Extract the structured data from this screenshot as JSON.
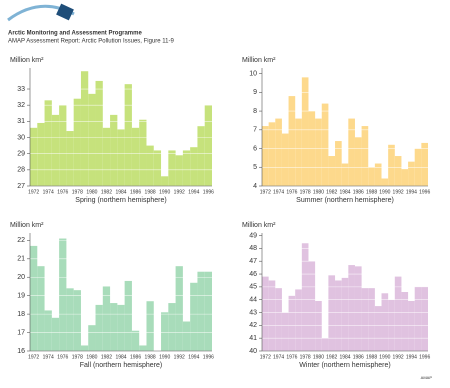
{
  "header": {
    "title": "Arctic Monitoring and Assessment Programme",
    "subtitle": "AMAP Assessment Report: Arctic Pollution Issues, Figure 11-9"
  },
  "footer": "AMAP",
  "chart_data": [
    {
      "type": "bar",
      "ylabel": "Million km²",
      "xlabel": "Spring (northern hemisphere)",
      "color": "#c6e27c",
      "categories": [
        "1972",
        null,
        "1974",
        null,
        "1976",
        null,
        "1978",
        null,
        "1980",
        null,
        "1982",
        null,
        "1984",
        null,
        "1986",
        null,
        "1988",
        null,
        "1990",
        null,
        "1992",
        null,
        "1994",
        null,
        "1996"
      ],
      "values": [
        30.6,
        30.9,
        32.3,
        31.4,
        32.0,
        30.4,
        32.4,
        34.1,
        32.7,
        33.5,
        30.6,
        31.4,
        30.5,
        33.3,
        30.6,
        31.1,
        29.5,
        29.2,
        27.6,
        29.2,
        28.9,
        29.2,
        29.4,
        30.7,
        32.0
      ],
      "ylim": [
        27,
        34.3
      ],
      "yticks": [
        27,
        28,
        29,
        30,
        31,
        32,
        33
      ],
      "grid": true
    },
    {
      "type": "bar",
      "ylabel": "Million km²",
      "xlabel": "Summer (northern hemisphere)",
      "color": "#fdd98c",
      "categories": [
        "1972",
        null,
        "1974",
        null,
        "1976",
        null,
        "1978",
        null,
        "1980",
        null,
        "1982",
        null,
        "1984",
        null,
        "1986",
        null,
        "1988",
        null,
        "1990",
        null,
        "1992",
        null,
        "1994",
        null,
        "1996"
      ],
      "values": [
        7.2,
        7.4,
        7.6,
        6.8,
        8.8,
        7.6,
        9.8,
        8.0,
        7.6,
        8.4,
        5.6,
        6.4,
        5.2,
        7.6,
        6.6,
        7.2,
        5.0,
        5.2,
        4.4,
        6.2,
        5.6,
        4.9,
        5.3,
        6.0,
        6.3
      ],
      "ylim": [
        4,
        10.3
      ],
      "yticks": [
        4,
        5,
        6,
        7,
        8,
        9,
        10
      ],
      "grid": true
    },
    {
      "type": "bar",
      "ylabel": "Million km²",
      "xlabel": "Fall (northern hemisphere)",
      "color": "#a8dcba",
      "categories": [
        "1972",
        null,
        "1974",
        null,
        "1976",
        null,
        "1978",
        null,
        "1980",
        null,
        "1982",
        null,
        "1984",
        null,
        "1986",
        null,
        "1988",
        null,
        "1990",
        null,
        "1992",
        null,
        "1994",
        null,
        "1996"
      ],
      "values": [
        21.7,
        20.6,
        18.2,
        17.8,
        22.1,
        19.4,
        19.3,
        16.3,
        17.4,
        18.5,
        19.5,
        18.6,
        18.5,
        19.8,
        17.1,
        16.3,
        18.7,
        16.0,
        18.1,
        18.6,
        20.6,
        17.6,
        19.7,
        20.3,
        20.3
      ],
      "ylim": [
        16,
        22.4
      ],
      "yticks": [
        16,
        17,
        18,
        19,
        20,
        21,
        22
      ],
      "grid": true
    },
    {
      "type": "bar",
      "ylabel": "Million km²",
      "xlabel": "Winter (northern hemisphere)",
      "color": "#e0c2e0",
      "categories": [
        "1972",
        null,
        "1974",
        null,
        "1976",
        null,
        "1978",
        null,
        "1980",
        null,
        "1982",
        null,
        "1984",
        null,
        "1986",
        null,
        "1988",
        null,
        "1990",
        null,
        "1992",
        null,
        "1994",
        null,
        "1996"
      ],
      "values": [
        45.8,
        45.5,
        44.9,
        43.0,
        44.3,
        44.8,
        48.4,
        47.0,
        43.9,
        41.0,
        45.9,
        45.5,
        45.7,
        46.7,
        46.6,
        44.9,
        44.9,
        43.5,
        44.5,
        44.0,
        45.8,
        44.6,
        43.9,
        45.0,
        45.0
      ],
      "ylim": [
        40,
        49.2
      ],
      "yticks": [
        40,
        41,
        42,
        43,
        44,
        45,
        46,
        47,
        48,
        49
      ],
      "grid": true
    }
  ]
}
